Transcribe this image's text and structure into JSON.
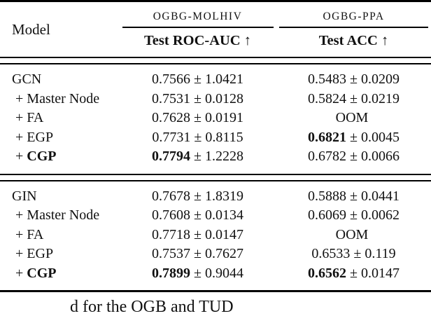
{
  "table": {
    "header": {
      "model_label": "Model",
      "groups": [
        {
          "dataset": "OGBG-MOLHIV",
          "metric": "Test ROC-AUC ↑"
        },
        {
          "dataset": "OGBG-PPA",
          "metric": "Test ACC ↑"
        }
      ]
    },
    "blocks": [
      {
        "rows": [
          {
            "prefix": "",
            "model": "GCN",
            "model_bold": false,
            "molhiv": {
              "mean": "0.7566",
              "pm_std": "± 1.0421",
              "bold": false
            },
            "ppa": {
              "mean": "0.5483",
              "pm_std": "± 0.0209",
              "bold": false
            }
          },
          {
            "prefix": " + ",
            "model": "Master Node",
            "model_bold": false,
            "molhiv": {
              "mean": "0.7531",
              "pm_std": "± 0.0128",
              "bold": false
            },
            "ppa": {
              "mean": "0.5824",
              "pm_std": "± 0.0219",
              "bold": false
            }
          },
          {
            "prefix": " + ",
            "model": "FA",
            "model_bold": false,
            "molhiv": {
              "mean": "0.7628",
              "pm_std": "± 0.0191",
              "bold": false
            },
            "ppa": {
              "mean": "OOM",
              "pm_std": "",
              "bold": false
            }
          },
          {
            "prefix": " + ",
            "model": "EGP",
            "model_bold": false,
            "molhiv": {
              "mean": "0.7731",
              "pm_std": "± 0.8115",
              "bold": false
            },
            "ppa": {
              "mean": "0.6821",
              "pm_std": "± 0.0045",
              "bold": true
            }
          },
          {
            "prefix": " + ",
            "model": "CGP",
            "model_bold": true,
            "molhiv": {
              "mean": "0.7794",
              "pm_std": "± 1.2228",
              "bold": true
            },
            "ppa": {
              "mean": "0.6782",
              "pm_std": "± 0.0066",
              "bold": false
            }
          }
        ]
      },
      {
        "rows": [
          {
            "prefix": "",
            "model": "GIN",
            "model_bold": false,
            "molhiv": {
              "mean": "0.7678",
              "pm_std": "± 1.8319",
              "bold": false
            },
            "ppa": {
              "mean": "0.5888",
              "pm_std": "± 0.0441",
              "bold": false
            }
          },
          {
            "prefix": " + ",
            "model": "Master Node",
            "model_bold": false,
            "molhiv": {
              "mean": "0.7608",
              "pm_std": "± 0.0134",
              "bold": false
            },
            "ppa": {
              "mean": "0.6069",
              "pm_std": "± 0.0062",
              "bold": false
            }
          },
          {
            "prefix": " + ",
            "model": "FA",
            "model_bold": false,
            "molhiv": {
              "mean": "0.7718",
              "pm_std": "± 0.0147",
              "bold": false
            },
            "ppa": {
              "mean": "OOM",
              "pm_std": "",
              "bold": false
            }
          },
          {
            "prefix": " + ",
            "model": "EGP",
            "model_bold": false,
            "molhiv": {
              "mean": "0.7537",
              "pm_std": "± 0.7627",
              "bold": false
            },
            "ppa": {
              "mean": "0.6533",
              "pm_std": "± 0.119",
              "bold": false
            }
          },
          {
            "prefix": " + ",
            "model": "CGP",
            "model_bold": true,
            "molhiv": {
              "mean": "0.7899",
              "pm_std": "± 0.9044",
              "bold": true
            },
            "ppa": {
              "mean": "0.6562",
              "pm_std": "± 0.0147",
              "bold": true
            }
          }
        ]
      }
    ]
  },
  "caption_fragment": "d for the OGB and TUD",
  "colors": {
    "text": "#111111",
    "rule": "#000000",
    "background": "#ffffff"
  }
}
